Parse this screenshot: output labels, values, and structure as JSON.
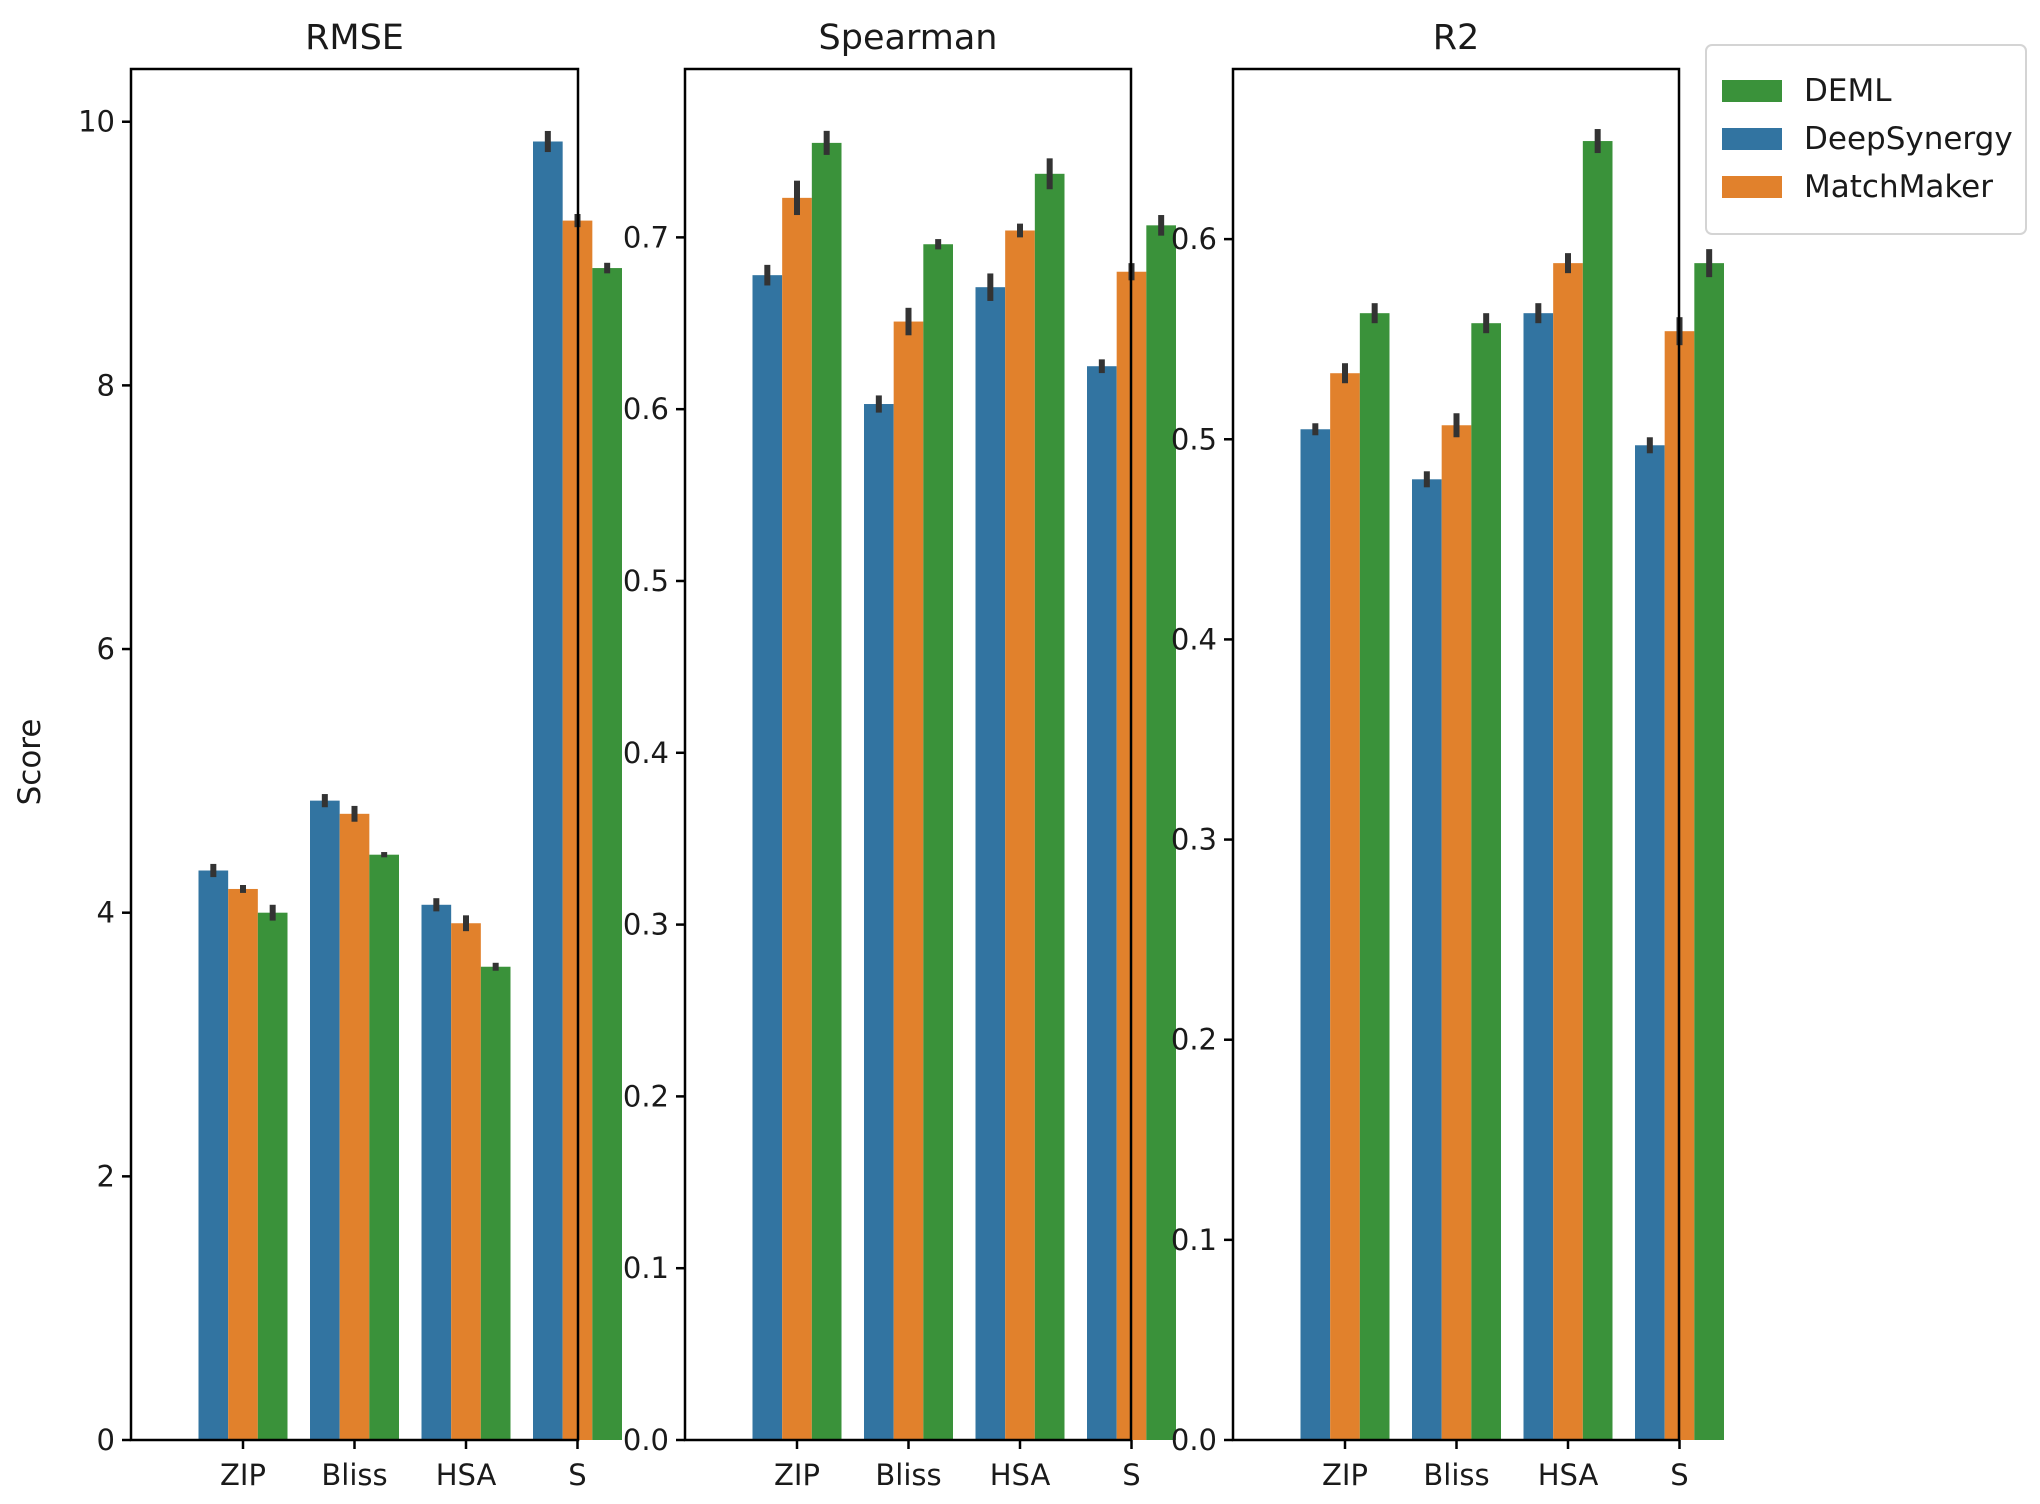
{
  "chart_data": {
    "type": "bar",
    "ylabel": "Score",
    "categories": [
      "ZIP",
      "Bliss",
      "HSA",
      "S"
    ],
    "legend": {
      "placement": "top-right",
      "entries": [
        {
          "name": "DEML",
          "color": "#3a923a"
        },
        {
          "name": "DeepSynergy",
          "color": "#3274a1"
        },
        {
          "name": "MatchMaker",
          "color": "#e1812c"
        }
      ]
    },
    "series_order": [
      "DeepSynergy",
      "MatchMaker",
      "DEML"
    ],
    "panels": [
      {
        "title": "RMSE",
        "ylim": [
          0,
          10.4
        ],
        "yticks": [
          0,
          2,
          4,
          6,
          8,
          10
        ],
        "ytick_labels": [
          "0",
          "2",
          "4",
          "6",
          "8",
          "10"
        ],
        "series": [
          {
            "name": "DeepSynergy",
            "values": [
              4.32,
              4.85,
              4.06,
              9.85
            ],
            "err": [
              0.05,
              0.05,
              0.05,
              0.08
            ]
          },
          {
            "name": "MatchMaker",
            "values": [
              4.18,
              4.75,
              3.92,
              9.25
            ],
            "err": [
              0.03,
              0.06,
              0.06,
              0.05
            ]
          },
          {
            "name": "DEML",
            "values": [
              4.0,
              4.44,
              3.59,
              8.89
            ],
            "err": [
              0.06,
              0.02,
              0.03,
              0.04
            ]
          }
        ]
      },
      {
        "title": "Spearman",
        "ylim": [
          0,
          0.798
        ],
        "yticks": [
          0,
          0.1,
          0.2,
          0.3,
          0.4,
          0.5,
          0.6,
          0.7
        ],
        "ytick_labels": [
          "0.0",
          "0.1",
          "0.2",
          "0.3",
          "0.4",
          "0.5",
          "0.6",
          "0.7"
        ],
        "series": [
          {
            "name": "DeepSynergy",
            "values": [
              0.678,
              0.603,
              0.671,
              0.625
            ],
            "err": [
              0.006,
              0.005,
              0.008,
              0.004
            ]
          },
          {
            "name": "MatchMaker",
            "values": [
              0.723,
              0.651,
              0.704,
              0.68
            ],
            "err": [
              0.01,
              0.008,
              0.004,
              0.005
            ]
          },
          {
            "name": "DEML",
            "values": [
              0.755,
              0.696,
              0.737,
              0.707
            ],
            "err": [
              0.007,
              0.003,
              0.009,
              0.006
            ]
          }
        ]
      },
      {
        "title": "R2",
        "ylim": [
          0,
          0.685
        ],
        "yticks": [
          0,
          0.1,
          0.2,
          0.3,
          0.4,
          0.5,
          0.6
        ],
        "ytick_labels": [
          "0.0",
          "0.1",
          "0.2",
          "0.3",
          "0.4",
          "0.5",
          "0.6"
        ],
        "series": [
          {
            "name": "DeepSynergy",
            "values": [
              0.505,
              0.48,
              0.563,
              0.497
            ],
            "err": [
              0.003,
              0.004,
              0.005,
              0.004
            ]
          },
          {
            "name": "MatchMaker",
            "values": [
              0.533,
              0.507,
              0.588,
              0.554
            ],
            "err": [
              0.005,
              0.006,
              0.005,
              0.007
            ]
          },
          {
            "name": "DEML",
            "values": [
              0.563,
              0.558,
              0.649,
              0.588
            ],
            "err": [
              0.005,
              0.005,
              0.006,
              0.007
            ]
          }
        ]
      }
    ]
  }
}
